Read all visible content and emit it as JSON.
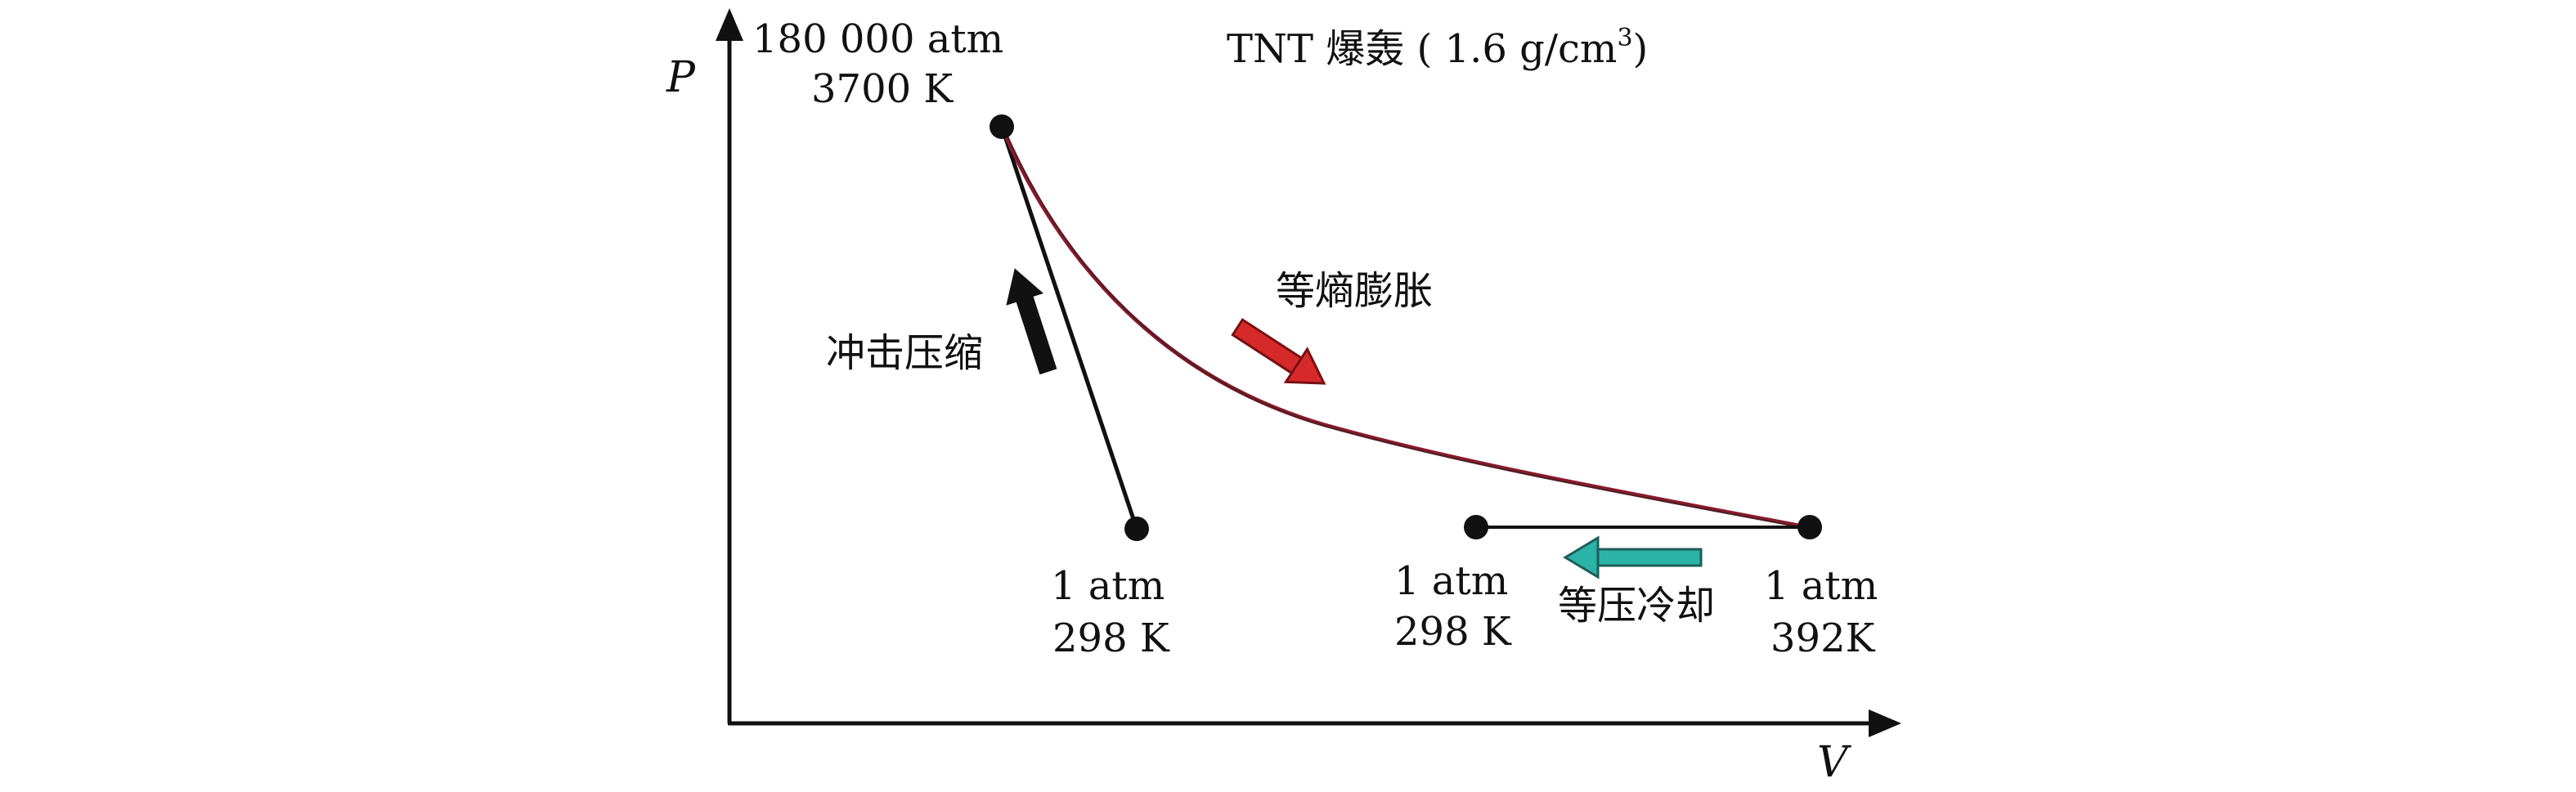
{
  "title": {
    "prefix": "TNT 爆轰 ( 1.6 g/cm",
    "superscript": "3",
    "suffix": ")"
  },
  "axes": {
    "y_label": "P",
    "x_label": "V"
  },
  "states": {
    "top": {
      "line1": "180 000 atm",
      "line2": "3700 K"
    },
    "initial": {
      "line1": "1 atm",
      "line2": "298 K"
    },
    "cooled": {
      "line1": "1 atm",
      "line2": "298 K"
    },
    "expanded": {
      "line1": "1 atm",
      "line2": "392K"
    }
  },
  "processes": {
    "shock": "冲击压缩",
    "isentropic": "等熵膨胀",
    "isobaric": "等压冷却"
  },
  "colors": {
    "axis": "#111111",
    "shock_arrow": "#111111",
    "isentropic_curve": "#8b1a2b",
    "isentropic_arrow": "#d62a2a",
    "isobaric_arrow": "#2bb3a8",
    "points": "#111111"
  }
}
